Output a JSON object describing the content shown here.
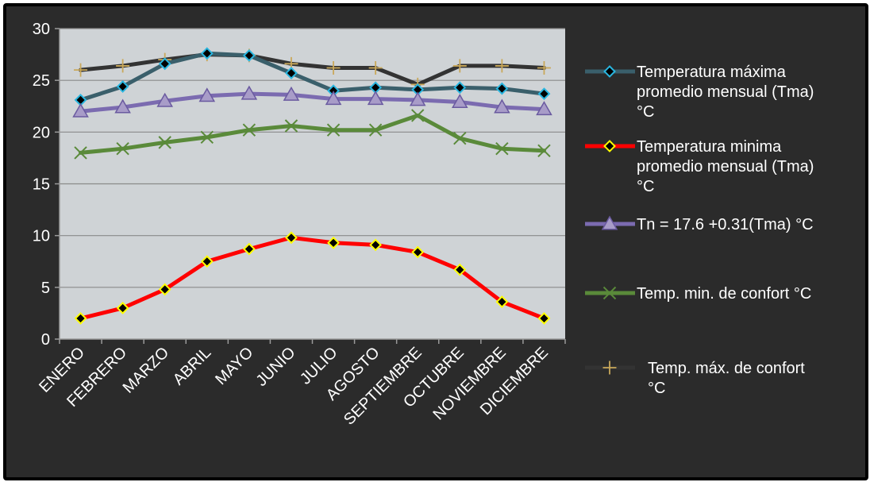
{
  "chart_data": {
    "type": "line",
    "title": "",
    "xlabel": "",
    "ylabel": "",
    "ylim": [
      0,
      30
    ],
    "yticks": [
      0,
      5,
      10,
      15,
      20,
      25,
      30
    ],
    "grid": true,
    "legend_position": "right",
    "categories": [
      "ENERO",
      "FEBRERO",
      "MARZO",
      "ABRIL",
      "MAYO",
      "JUNIO",
      "JULIO",
      "AGOSTO",
      "SEPTIEMBRE",
      "OCTUBRE",
      "NOVIEMBRE",
      "DICIEMBRE"
    ],
    "series": [
      {
        "name": "Temperatura máxima promedio mensual (Tma) °C",
        "legend_lines": [
          "Temperatura máxima",
          "promedio mensual (Tma)",
          "°C"
        ],
        "color": "#3a5f6b",
        "marker": "diamond",
        "marker_fill": "#000000",
        "marker_stroke": "#29b6e0",
        "values": [
          23.1,
          24.4,
          26.6,
          27.6,
          27.4,
          25.7,
          24.0,
          24.3,
          24.1,
          24.3,
          24.2,
          23.7
        ]
      },
      {
        "name": "Temperatura minima promedio mensual (Tma) °C",
        "legend_lines": [
          "Temperatura minima",
          "promedio mensual (Tma)",
          "°C"
        ],
        "color": "#ff0000",
        "marker": "diamond",
        "marker_fill": "#000000",
        "marker_stroke": "#ffff00",
        "values": [
          2.0,
          3.0,
          4.8,
          7.5,
          8.7,
          9.8,
          9.3,
          9.1,
          8.4,
          6.7,
          3.6,
          2.0
        ]
      },
      {
        "name": "Tn = 17.6 +0.31(Tma) °C",
        "legend_lines": [
          "Tn = 17.6 +0.31(Tma) °C"
        ],
        "color": "#7b6bb0",
        "marker": "triangle",
        "marker_fill": "#a89cc8",
        "marker_stroke": "#6a5aa0",
        "values": [
          22.0,
          22.4,
          23.0,
          23.5,
          23.7,
          23.6,
          23.2,
          23.2,
          23.1,
          22.9,
          22.4,
          22.2
        ]
      },
      {
        "name": "Temp. min. de confort °C",
        "legend_lines": [
          "Temp. min. de confort °C"
        ],
        "color": "#5a8a3a",
        "marker": "x",
        "marker_fill": "none",
        "marker_stroke": "#5a8a3a",
        "values": [
          18.0,
          18.4,
          19.0,
          19.5,
          20.2,
          20.6,
          20.2,
          20.2,
          21.6,
          19.4,
          18.4,
          18.2
        ]
      },
      {
        "name": "Temp. máx. de confort °C",
        "legend_lines": [
          "Temp. máx. de confort",
          "°C"
        ],
        "color": "#333333",
        "marker": "plus",
        "marker_fill": "none",
        "marker_stroke": "#c9a85a",
        "values": [
          26.0,
          26.4,
          27.0,
          27.5,
          27.4,
          26.6,
          26.2,
          26.2,
          24.6,
          26.4,
          26.4,
          26.2
        ]
      }
    ]
  },
  "colors": {
    "frame_background": "#2b2b2b",
    "plot_background": "#cfd3d6",
    "gridline": "#8a8a8a",
    "text": "#ffffff"
  }
}
